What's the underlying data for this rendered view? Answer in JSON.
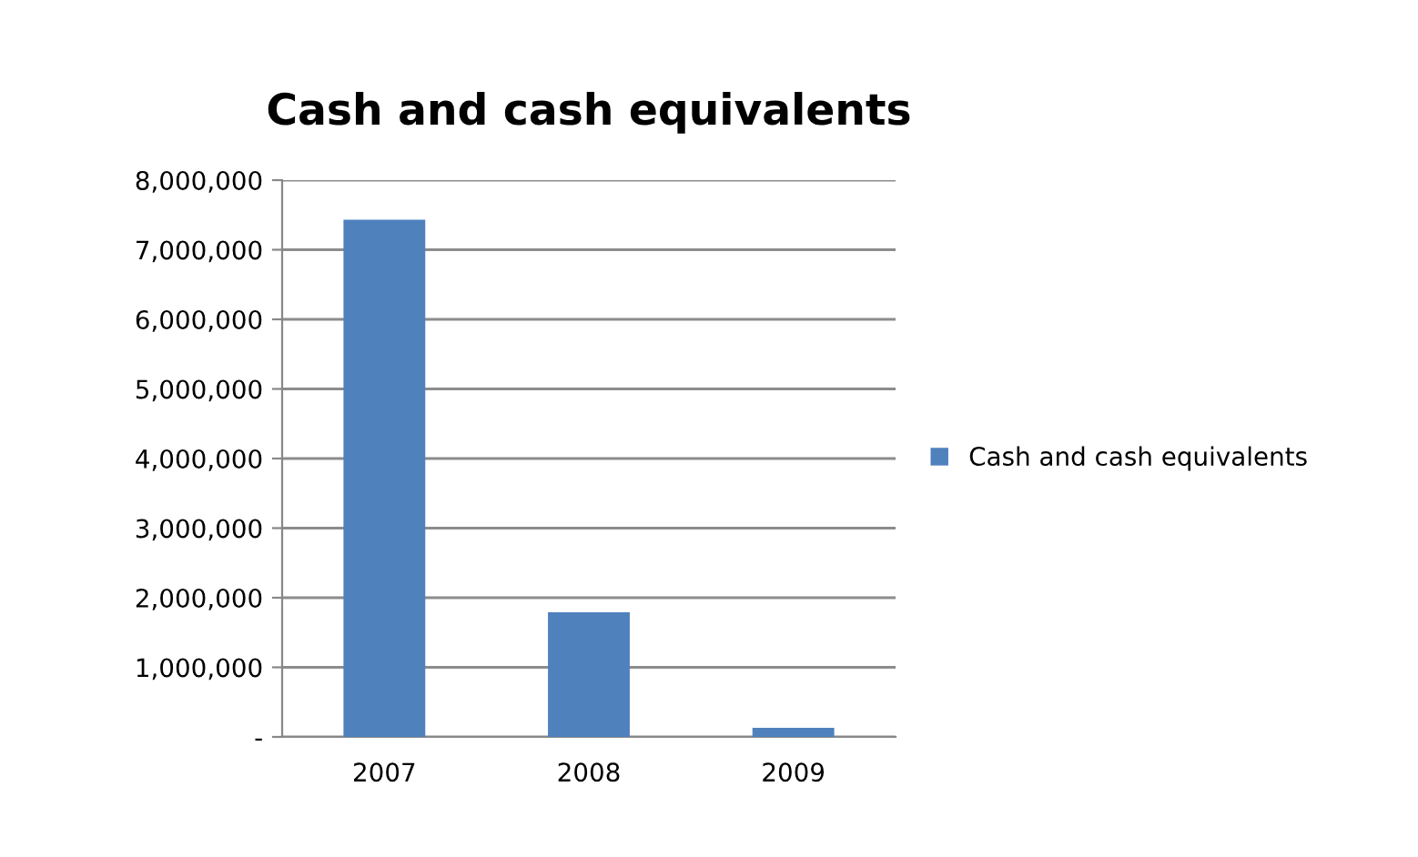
{
  "chart_data": {
    "type": "bar",
    "title": "Cash and cash equivalents",
    "categories": [
      "2007",
      "2008",
      "2009"
    ],
    "series": [
      {
        "name": "Cash and cash equivalents",
        "color": "#4f81bd",
        "values": [
          7430000,
          1790000,
          130000
        ]
      }
    ],
    "ylim": [
      0,
      8000000
    ],
    "yticks": [
      {
        "value": 0,
        "label": "-"
      },
      {
        "value": 1000000,
        "label": "1,000,000"
      },
      {
        "value": 2000000,
        "label": "2,000,000"
      },
      {
        "value": 3000000,
        "label": "3,000,000"
      },
      {
        "value": 4000000,
        "label": "4,000,000"
      },
      {
        "value": 5000000,
        "label": "5,000,000"
      },
      {
        "value": 6000000,
        "label": "6,000,000"
      },
      {
        "value": 7000000,
        "label": "7,000,000"
      },
      {
        "value": 8000000,
        "label": "8,000,000"
      }
    ],
    "grid": "y",
    "legend": "right"
  }
}
